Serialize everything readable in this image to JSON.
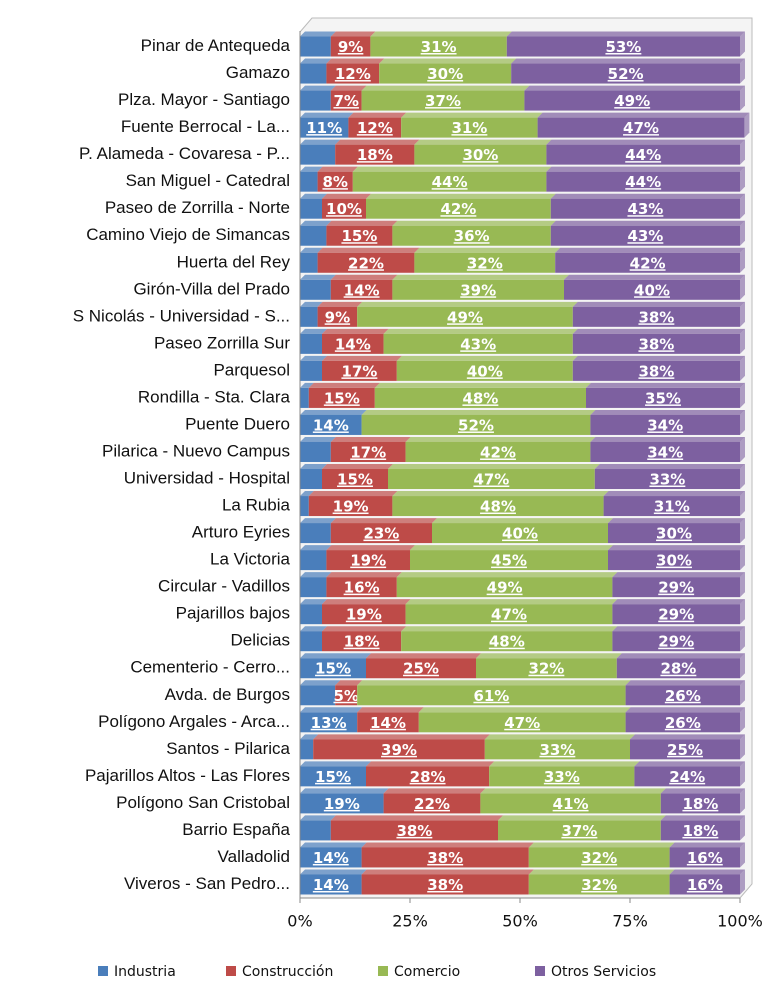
{
  "chart_data": {
    "type": "stacked-bar-horizontal",
    "categories": [
      "Pinar de Antequeda",
      "Gamazo",
      "Plza. Mayor - Santiago",
      "Fuente Berrocal - La...",
      "P. Alameda - Covaresa - P...",
      "San Miguel - Catedral",
      "Paseo de Zorrilla - Norte",
      "Camino Viejo de Simancas",
      "Huerta del Rey",
      "Girón-Villa del Prado",
      "S Nicolás - Universidad - S...",
      "Paseo Zorrilla Sur",
      "Parquesol",
      "Rondilla - Sta. Clara",
      "Puente Duero",
      "Pilarica - Nuevo Campus",
      "Universidad - Hospital",
      "La Rubia",
      "Arturo Eyries",
      "La Victoria",
      "Circular - Vadillos",
      "Pajarillos bajos",
      "Delicias",
      "Cementerio - Cerro...",
      "Avda. de Burgos",
      "Polígono Argales - Arca...",
      "Santos - Pilarica",
      "Pajarillos Altos - Las Flores",
      "Polígono San Cristobal",
      "Barrio España",
      "Valladolid",
      "Viveros - San Pedro..."
    ],
    "series": [
      {
        "name": "Industria",
        "color": "#4a7ebb",
        "values": [
          7,
          6,
          7,
          11,
          8,
          4,
          5,
          6,
          4,
          7,
          4,
          5,
          5,
          2,
          14,
          7,
          5,
          2,
          7,
          6,
          6,
          5,
          5,
          15,
          8,
          13,
          3,
          15,
          19,
          7,
          14,
          14
        ],
        "value_labels": [
          null,
          null,
          null,
          "11%",
          null,
          null,
          null,
          null,
          null,
          null,
          null,
          null,
          null,
          null,
          "14%",
          null,
          null,
          null,
          null,
          null,
          null,
          null,
          null,
          "15%",
          null,
          "13%",
          null,
          "15%",
          "19%",
          null,
          "14%",
          "14%"
        ]
      },
      {
        "name": "Construcción",
        "color": "#be4b48",
        "values": [
          9,
          12,
          7,
          12,
          18,
          8,
          10,
          15,
          22,
          14,
          9,
          14,
          17,
          15,
          0,
          17,
          15,
          19,
          23,
          19,
          16,
          19,
          18,
          25,
          5,
          14,
          39,
          28,
          22,
          38,
          38,
          38
        ],
        "value_labels": [
          "9%",
          "12%",
          "7%",
          "12%",
          "18%",
          "8%",
          "10%",
          "15%",
          "22%",
          "14%",
          "9%",
          "14%",
          "17%",
          "15%",
          null,
          "17%",
          "15%",
          "19%",
          "23%",
          "19%",
          "16%",
          "19%",
          "18%",
          "25%",
          "5%",
          "14%",
          "39%",
          "28%",
          "22%",
          "38%",
          "38%",
          "38%"
        ]
      },
      {
        "name": "Comercio",
        "color": "#98b954",
        "values": [
          31,
          30,
          37,
          31,
          30,
          44,
          42,
          36,
          32,
          39,
          49,
          43,
          40,
          48,
          52,
          42,
          47,
          48,
          40,
          45,
          49,
          47,
          48,
          32,
          61,
          47,
          33,
          33,
          41,
          37,
          32,
          32
        ],
        "value_labels": [
          "31%",
          "30%",
          "37%",
          "31%",
          "30%",
          "44%",
          "42%",
          "36%",
          "32%",
          "39%",
          "49%",
          "43%",
          "40%",
          "48%",
          "52%",
          "42%",
          "47%",
          "48%",
          "40%",
          "45%",
          "49%",
          "47%",
          "48%",
          "32%",
          "61%",
          "47%",
          "33%",
          "33%",
          "41%",
          "37%",
          "32%",
          "32%"
        ]
      },
      {
        "name": "Otros Servicios",
        "color": "#7d60a0",
        "values": [
          53,
          52,
          49,
          47,
          44,
          44,
          43,
          43,
          42,
          40,
          38,
          38,
          38,
          35,
          34,
          34,
          33,
          31,
          30,
          30,
          29,
          29,
          29,
          28,
          26,
          26,
          25,
          24,
          18,
          18,
          16,
          16
        ],
        "value_labels": [
          "53%",
          "52%",
          "49%",
          "47%",
          "44%",
          "44%",
          "43%",
          "43%",
          "42%",
          "40%",
          "38%",
          "38%",
          "38%",
          "35%",
          "34%",
          "34%",
          "33%",
          "31%",
          "30%",
          "30%",
          "29%",
          "29%",
          "29%",
          "28%",
          "26%",
          "26%",
          "25%",
          "24%",
          "18%",
          "18%",
          "16%",
          "16%"
        ]
      }
    ],
    "xlim": [
      0,
      100
    ],
    "xticks": [
      {
        "value": 0,
        "label": "0%"
      },
      {
        "value": 25,
        "label": "25%"
      },
      {
        "value": 50,
        "label": "50%"
      },
      {
        "value": 75,
        "label": "75%"
      },
      {
        "value": 100,
        "label": "100%"
      }
    ],
    "grid": false,
    "legend": "bottom"
  }
}
